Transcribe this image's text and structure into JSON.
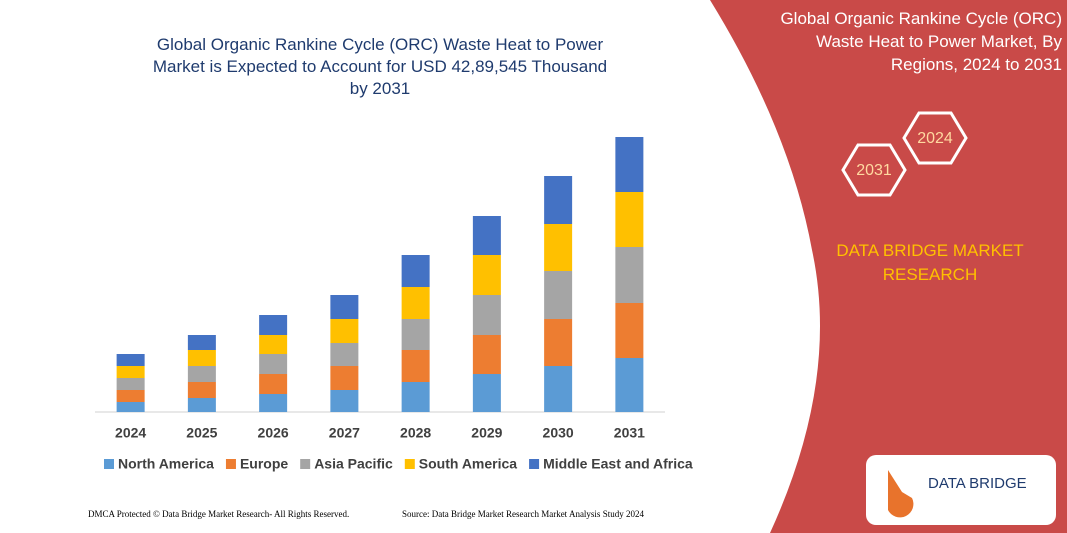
{
  "chart_data": {
    "type": "bar",
    "stacked": true,
    "title": "Global Organic Rankine Cycle (ORC) Waste Heat to Power Market is Expected to Account for USD 42,89,545 Thousand by 2031",
    "categories": [
      "2024",
      "2025",
      "2026",
      "2027",
      "2028",
      "2029",
      "2030",
      "2031"
    ],
    "series": [
      {
        "name": "North America",
        "color": "#5b9bd5",
        "values": [
          10,
          14,
          18,
          22,
          30,
          38,
          46,
          54
        ]
      },
      {
        "name": "Europe",
        "color": "#ed7d31",
        "values": [
          12,
          16,
          20,
          24,
          32,
          39,
          47,
          55
        ]
      },
      {
        "name": "Asia Pacific",
        "color": "#a5a5a5",
        "values": [
          12,
          16,
          20,
          23,
          31,
          40,
          48,
          56
        ]
      },
      {
        "name": "South America",
        "color": "#ffc000",
        "values": [
          12,
          16,
          19,
          24,
          32,
          40,
          47,
          55
        ]
      },
      {
        "name": "Middle East and Africa",
        "color": "#4472c4",
        "values": [
          12,
          15,
          20,
          24,
          32,
          39,
          48,
          55
        ]
      }
    ],
    "legend": "bottom"
  },
  "panel": {
    "title": "Global Organic Rankine Cycle (ORC) Waste Heat to Power Market, By Regions, 2024 to 2031",
    "hex_left": "2031",
    "hex_right": "2024",
    "brand": "DATA BRIDGE MARKET RESEARCH",
    "logo": "DATA BRIDGE"
  },
  "footer": {
    "left": "DMCA Protected © Data Bridge Market Research- All Rights Reserved.",
    "right": "Source: Data Bridge Market Research Market Analysis Study 2024"
  }
}
